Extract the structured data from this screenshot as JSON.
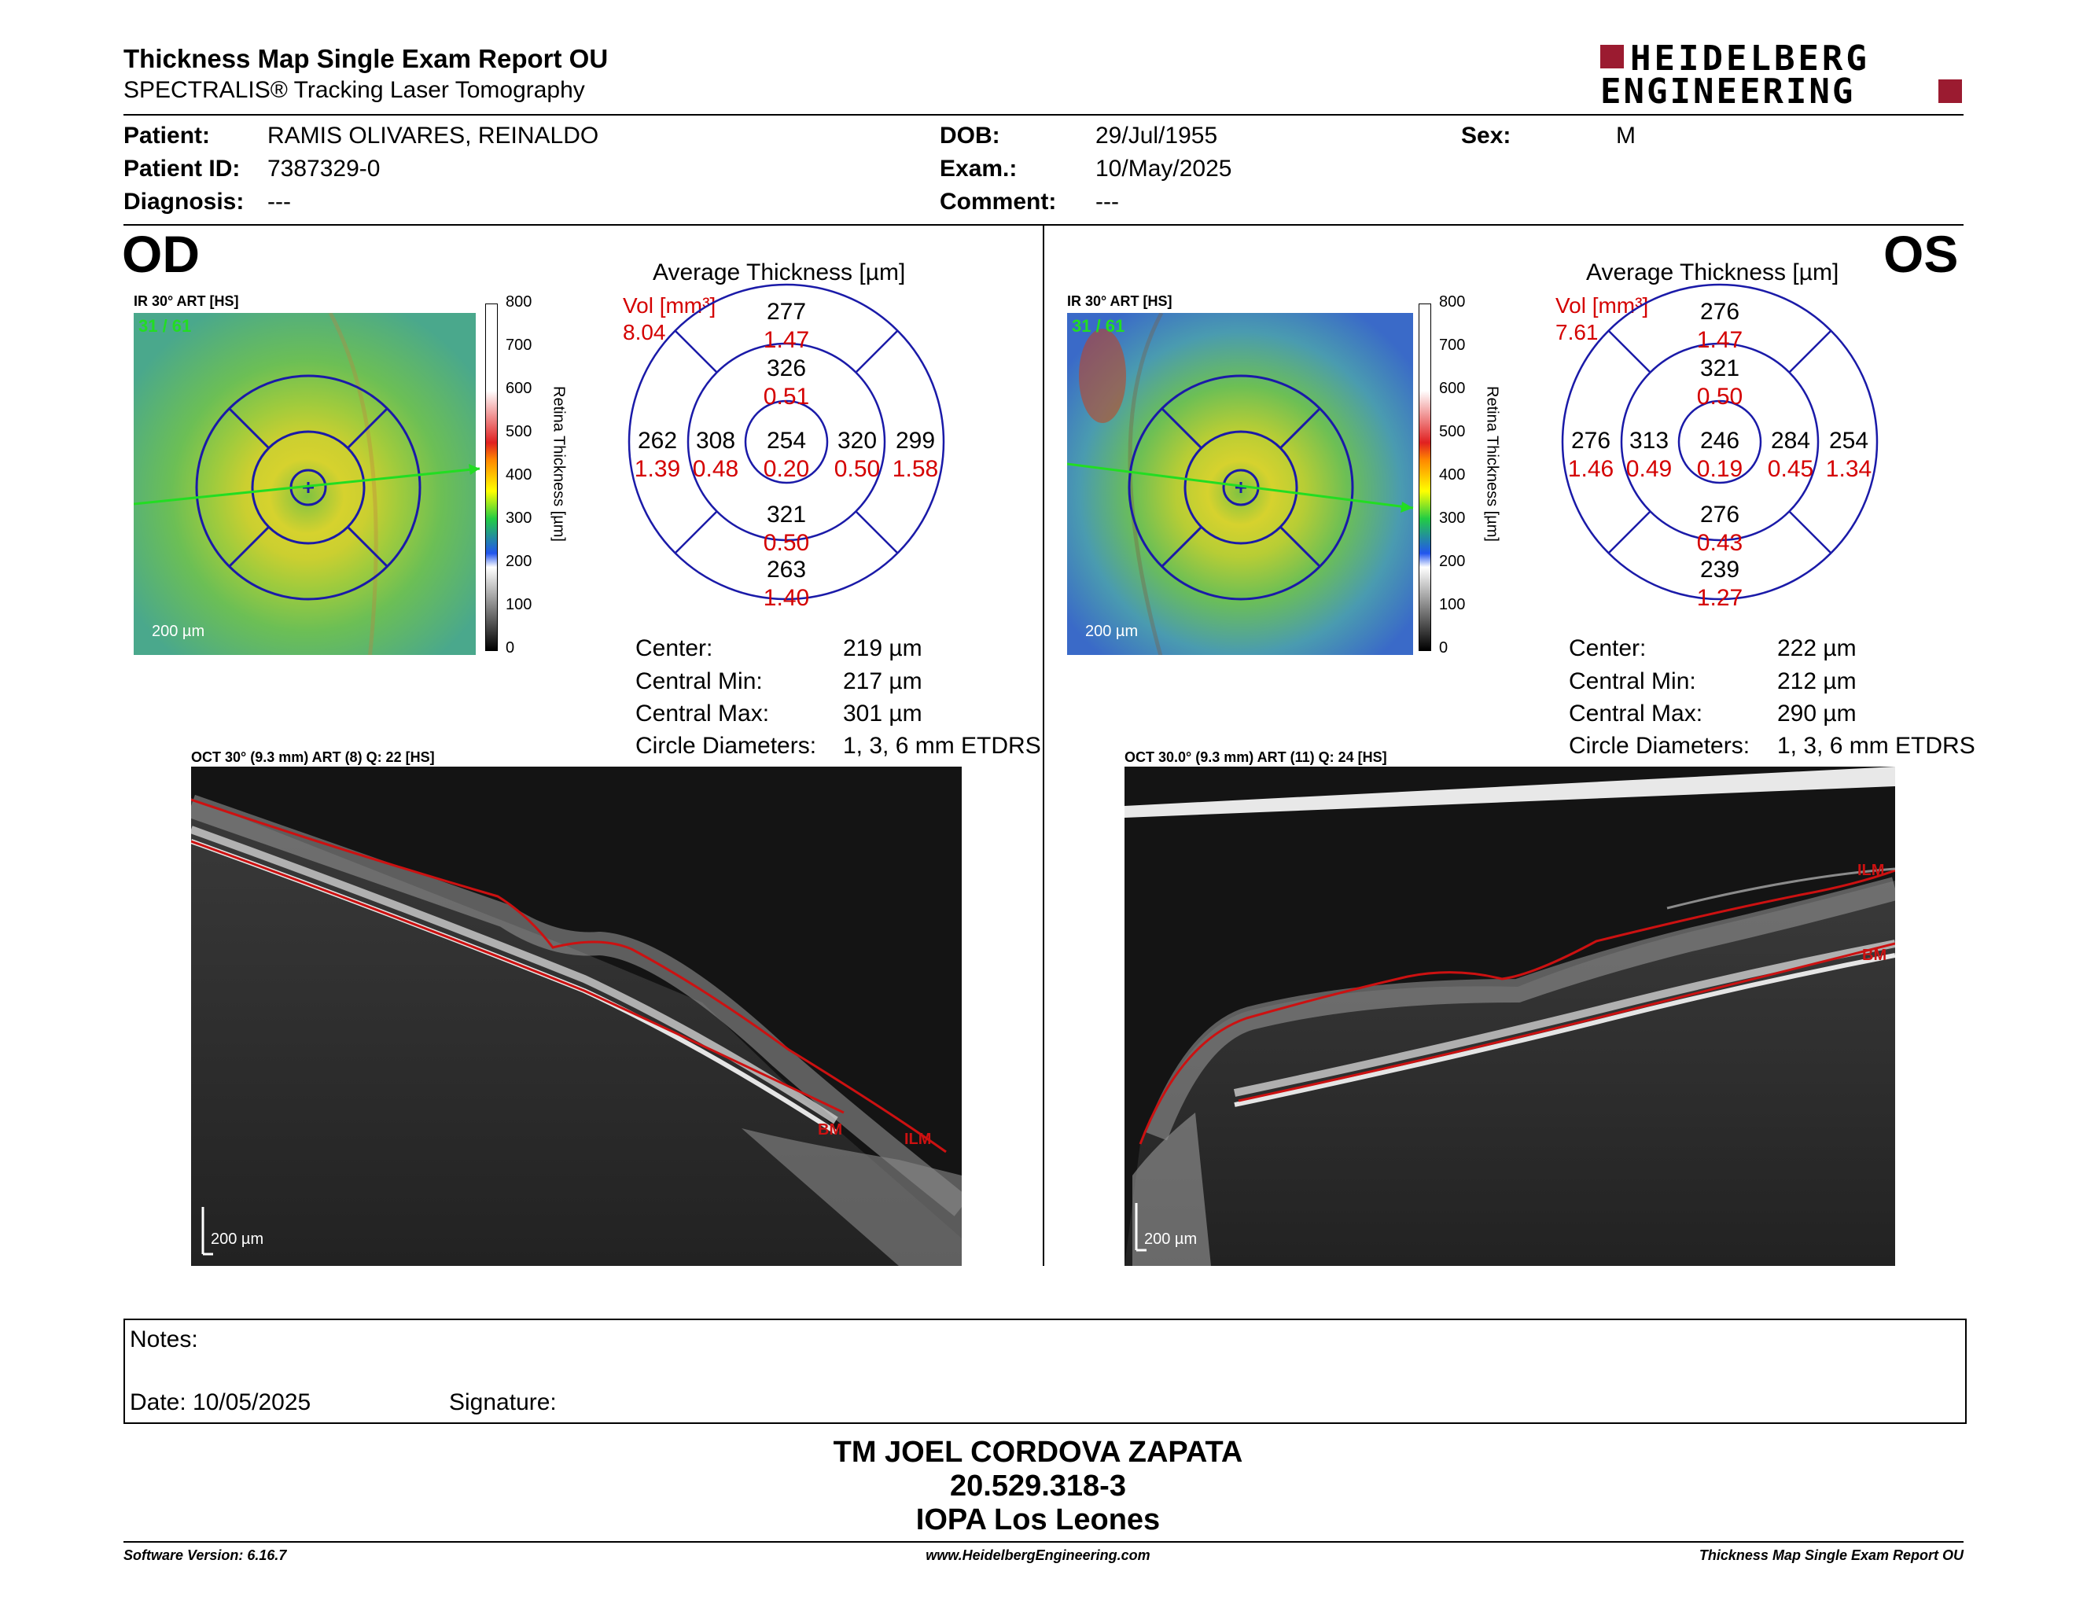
{
  "header": {
    "title": "Thickness Map Single Exam Report OU",
    "subtitle": "SPECTRALIS® Tracking Laser Tomography",
    "logo_line1": "HEIDELBERG",
    "logo_line2": "ENGINEERING"
  },
  "patient": {
    "patient_label": "Patient:",
    "patient_value": "RAMIS OLIVARES, REINALDO",
    "id_label": "Patient ID:",
    "id_value": "7387329-0",
    "diagnosis_label": "Diagnosis:",
    "diagnosis_value": "---",
    "dob_label": "DOB:",
    "dob_value": "29/Jul/1955",
    "exam_label": "Exam.:",
    "exam_value": "10/May/2025",
    "comment_label": "Comment:",
    "comment_value": "---",
    "sex_label": "Sex:",
    "sex_value": "M"
  },
  "od": {
    "eye": "OD",
    "ir_label": "IR 30° ART [HS]",
    "frames": "31 / 61",
    "scale": "200 µm",
    "colorbar_ticks": [
      "800",
      "700",
      "600",
      "500",
      "400",
      "300",
      "200",
      "100",
      "0"
    ],
    "colorbar_title": "Retina Thickness [µm]",
    "avg_title": "Average Thickness [µm]",
    "vol_label": "Vol [mm³]",
    "vol_total": "8.04",
    "grid": {
      "center": [
        "254",
        "0.20"
      ],
      "inner_sup": [
        "326",
        "0.51"
      ],
      "inner_inf": [
        "321",
        "0.50"
      ],
      "inner_nasal": [
        "320",
        "0.50"
      ],
      "inner_temp": [
        "308",
        "0.48"
      ],
      "outer_sup": [
        "277",
        "1.47"
      ],
      "outer_inf": [
        "263",
        "1.40"
      ],
      "outer_nasal": [
        "299",
        "1.58"
      ],
      "outer_temp": [
        "262",
        "1.39"
      ]
    },
    "stats": [
      {
        "label": "Center:",
        "value": "219 µm"
      },
      {
        "label": "Central Min:",
        "value": "217 µm"
      },
      {
        "label": "Central Max:",
        "value": "301 µm"
      },
      {
        "label": "Circle Diameters:",
        "value": "1, 3, 6 mm ETDRS"
      }
    ],
    "oct_label": "OCT 30° (9.3 mm) ART (8) Q: 22 [HS]",
    "oct_scale": "200 µm",
    "bm": "BM",
    "ilm": "ILM"
  },
  "os": {
    "eye": "OS",
    "ir_label": "IR 30° ART [HS]",
    "frames": "31 / 61",
    "scale": "200 µm",
    "colorbar_ticks": [
      "800",
      "700",
      "600",
      "500",
      "400",
      "300",
      "200",
      "100",
      "0"
    ],
    "colorbar_title": "Retina Thickness [µm]",
    "avg_title": "Average Thickness [µm]",
    "vol_label": "Vol [mm³]",
    "vol_total": "7.61",
    "grid": {
      "center": [
        "246",
        "0.19"
      ],
      "inner_sup": [
        "321",
        "0.50"
      ],
      "inner_inf": [
        "276",
        "0.43"
      ],
      "inner_nasal": [
        "313",
        "0.49"
      ],
      "inner_temp": [
        "284",
        "0.45"
      ],
      "outer_sup": [
        "276",
        "1.47"
      ],
      "outer_inf": [
        "239",
        "1.27"
      ],
      "outer_nasal": [
        "276",
        "1.46"
      ],
      "outer_temp": [
        "254",
        "1.34"
      ]
    },
    "stats": [
      {
        "label": "Center:",
        "value": "222 µm"
      },
      {
        "label": "Central Min:",
        "value": "212 µm"
      },
      {
        "label": "Central Max:",
        "value": "290 µm"
      },
      {
        "label": "Circle Diameters:",
        "value": "1, 3, 6 mm ETDRS"
      }
    ],
    "oct_label": "OCT 30.0° (9.3 mm) ART (11) Q: 24 [HS]",
    "oct_scale": "200 µm",
    "bm": "BM",
    "ilm": "ILM"
  },
  "notes": {
    "notes_label": "Notes:",
    "date_label": "Date: 10/05/2025",
    "signature_label": "Signature:"
  },
  "signer": {
    "name": "TM JOEL CORDOVA ZAPATA",
    "id": "20.529.318-3",
    "place": "IOPA Los Leones"
  },
  "footer": {
    "software": "Software Version: 6.16.7",
    "website": "www.HeidelbergEngineering.com",
    "report": "Thickness Map Single Exam Report OU"
  },
  "colors": {
    "grid_blue": "#1a1aa8",
    "volume_red": "#d40000",
    "logo_red": "#9b1b30",
    "segment_red": "#cc1111",
    "scan_green": "#22dd22"
  }
}
